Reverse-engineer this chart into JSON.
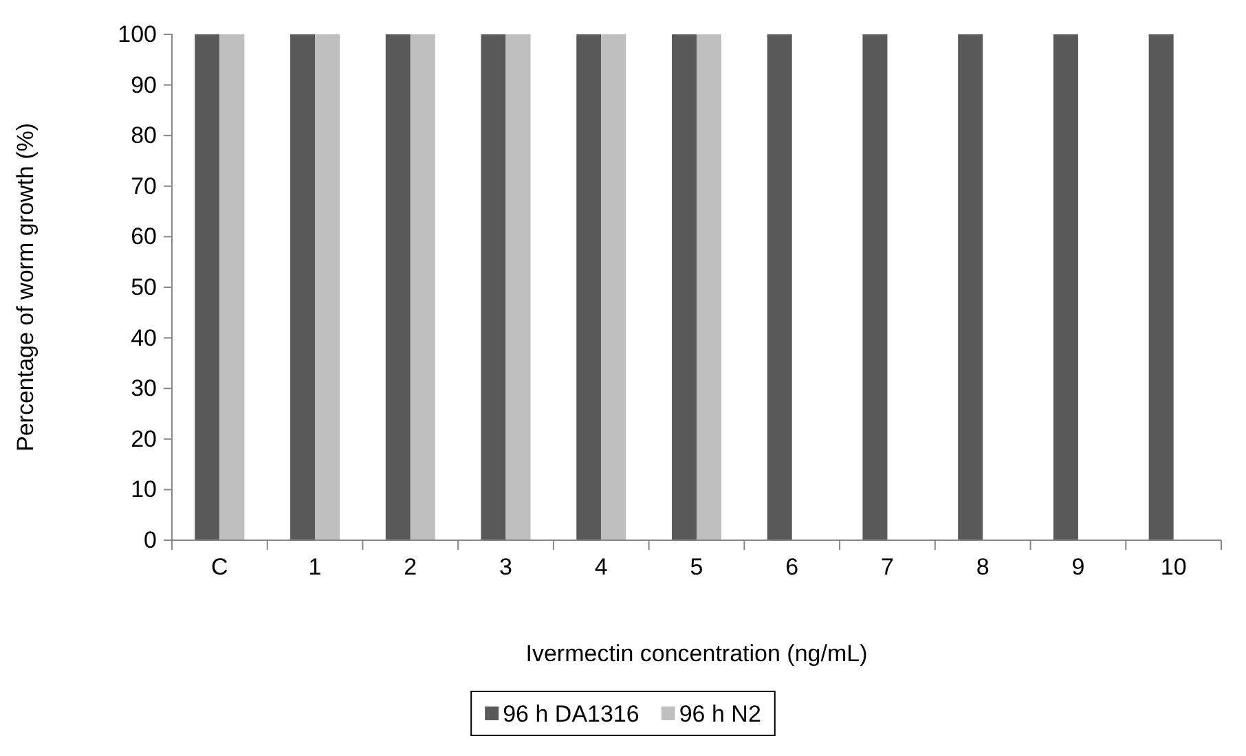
{
  "chart_data": {
    "type": "bar",
    "xlabel": "Ivermectin concentration (ng/mL)",
    "ylabel": "Percentage of worm growth (%)",
    "categories": [
      "C",
      "1",
      "2",
      "3",
      "4",
      "5",
      "6",
      "7",
      "8",
      "9",
      "10"
    ],
    "series": [
      {
        "name": "96 h DA1316",
        "color": "#595959",
        "values": [
          100,
          100,
          100,
          100,
          100,
          100,
          100,
          100,
          100,
          100,
          100
        ]
      },
      {
        "name": "96 h N2",
        "color": "#bfbfbf",
        "values": [
          100,
          100,
          100,
          100,
          100,
          100,
          0,
          0,
          0,
          0,
          0
        ]
      }
    ],
    "ylim": [
      0,
      100
    ],
    "yticks": [
      0,
      10,
      20,
      30,
      40,
      50,
      60,
      70,
      80,
      90,
      100
    ],
    "grid": false,
    "legend": "bottom"
  }
}
